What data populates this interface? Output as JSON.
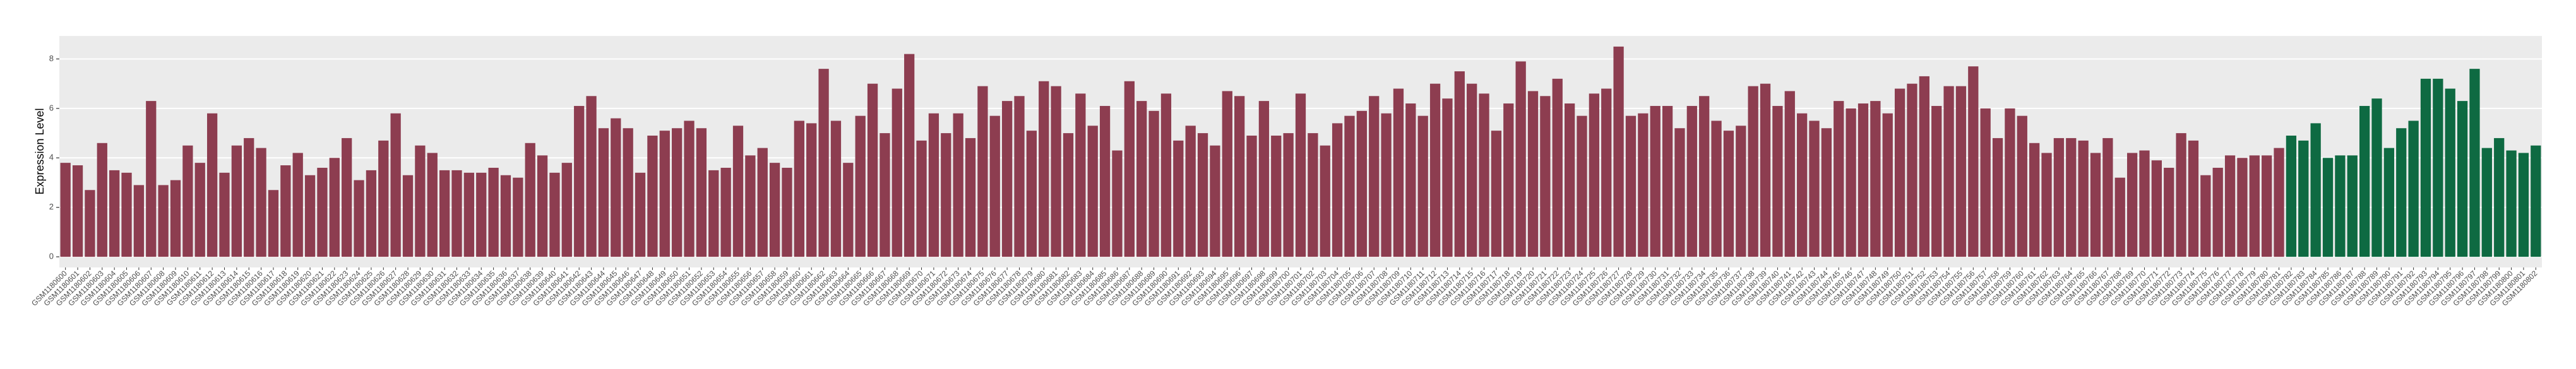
{
  "chart_data": {
    "type": "bar",
    "ylabel": "Expression Level",
    "categories": [
      "GSM1180600",
      "GSM1180601",
      "GSM1180602",
      "GSM1180603",
      "GSM1180604",
      "GSM1180605",
      "GSM1180606",
      "GSM1180607",
      "GSM1180608",
      "GSM1180609",
      "GSM1180610",
      "GSM1180611",
      "GSM1180612",
      "GSM1180613",
      "GSM1180614",
      "GSM1180615",
      "GSM1180616",
      "GSM1180617",
      "GSM1180618",
      "GSM1180619",
      "GSM1180620",
      "GSM1180621",
      "GSM1180622",
      "GSM1180623",
      "GSM1180624",
      "GSM1180625",
      "GSM1180626",
      "GSM1180627",
      "GSM1180628",
      "GSM1180629",
      "GSM1180630",
      "GSM1180631",
      "GSM1180632",
      "GSM1180633",
      "GSM1180634",
      "GSM1180635",
      "GSM1180636",
      "GSM1180637",
      "GSM1180638",
      "GSM1180639",
      "GSM1180640",
      "GSM1180641",
      "GSM1180642",
      "GSM1180643",
      "GSM1180644",
      "GSM1180645",
      "GSM1180646",
      "GSM1180647",
      "GSM1180648",
      "GSM1180649",
      "GSM1180650",
      "GSM1180651",
      "GSM1180652",
      "GSM1180653",
      "GSM1180654",
      "GSM1180655",
      "GSM1180656",
      "GSM1180657",
      "GSM1180658",
      "GSM1180659",
      "GSM1180660",
      "GSM1180661",
      "GSM1180662",
      "GSM1180663",
      "GSM1180664",
      "GSM1180665",
      "GSM1180666",
      "GSM1180667",
      "GSM1180668",
      "GSM1180669",
      "GSM1180670",
      "GSM1180671",
      "GSM1180672",
      "GSM1180673",
      "GSM1180674",
      "GSM1180675",
      "GSM1180676",
      "GSM1180677",
      "GSM1180678",
      "GSM1180679",
      "GSM1180680",
      "GSM1180681",
      "GSM1180682",
      "GSM1180683",
      "GSM1180684",
      "GSM1180685",
      "GSM1180686",
      "GSM1180687",
      "GSM1180688",
      "GSM1180689",
      "GSM1180690",
      "GSM1180691",
      "GSM1180692",
      "GSM1180693",
      "GSM1180694",
      "GSM1180695",
      "GSM1180696",
      "GSM1180697",
      "GSM1180698",
      "GSM1180699",
      "GSM1180700",
      "GSM1180701",
      "GSM1180702",
      "GSM1180703",
      "GSM1180704",
      "GSM1180705",
      "GSM1180706",
      "GSM1180707",
      "GSM1180708",
      "GSM1180709",
      "GSM1180710",
      "GSM1180711",
      "GSM1180712",
      "GSM1180713",
      "GSM1180714",
      "GSM1180715",
      "GSM1180716",
      "GSM1180717",
      "GSM1180718",
      "GSM1180719",
      "GSM1180720",
      "GSM1180721",
      "GSM1180722",
      "GSM1180723",
      "GSM1180724",
      "GSM1180725",
      "GSM1180726",
      "GSM1180727",
      "GSM1180728",
      "GSM1180729",
      "GSM1180730",
      "GSM1180731",
      "GSM1180732",
      "GSM1180733",
      "GSM1180734",
      "GSM1180735",
      "GSM1180736",
      "GSM1180737",
      "GSM1180738",
      "GSM1180739",
      "GSM1180740",
      "GSM1180741",
      "GSM1180742",
      "GSM1180743",
      "GSM1180744",
      "GSM1180745",
      "GSM1180746",
      "GSM1180747",
      "GSM1180748",
      "GSM1180749",
      "GSM1180750",
      "GSM1180751",
      "GSM1180752",
      "GSM1180753",
      "GSM1180754",
      "GSM1180755",
      "GSM1180756",
      "GSM1180757",
      "GSM1180758",
      "GSM1180759",
      "GSM1180760",
      "GSM1180761",
      "GSM1180762",
      "GSM1180763",
      "GSM1180764",
      "GSM1180765",
      "GSM1180766",
      "GSM1180767",
      "GSM1180768",
      "GSM1180769",
      "GSM1180770",
      "GSM1180771",
      "GSM1180772",
      "GSM1180773",
      "GSM1180774",
      "GSM1180775",
      "GSM1180776",
      "GSM1180777",
      "GSM1180778",
      "GSM1180779",
      "GSM1180780",
      "GSM1180781",
      "GSM1180782",
      "GSM1180783",
      "GSM1180784",
      "GSM1180785",
      "GSM1180786",
      "GSM1180787",
      "GSM1180788",
      "GSM1180789",
      "GSM1180790",
      "GSM1180791",
      "GSM1180792",
      "GSM1180793",
      "GSM1180794",
      "GSM1180795",
      "GSM1180796",
      "GSM1180797",
      "GSM1180798",
      "GSM1180799",
      "GSM1180800",
      "GSM1180801",
      "GSM1180802"
    ],
    "values": [
      3.8,
      3.7,
      2.7,
      4.6,
      3.5,
      3.4,
      2.9,
      6.3,
      2.9,
      3.1,
      4.5,
      3.8,
      5.8,
      3.4,
      4.5,
      4.8,
      4.4,
      2.7,
      3.7,
      4.2,
      3.3,
      3.6,
      4.0,
      4.8,
      3.1,
      3.5,
      4.7,
      5.8,
      3.3,
      4.5,
      4.2,
      3.5,
      3.5,
      3.4,
      3.4,
      3.6,
      3.3,
      3.2,
      4.6,
      4.1,
      3.4,
      3.8,
      6.1,
      6.5,
      5.2,
      5.6,
      5.2,
      3.4,
      4.9,
      5.1,
      5.2,
      5.5,
      5.2,
      3.5,
      3.6,
      5.3,
      4.1,
      4.4,
      3.8,
      3.6,
      5.5,
      5.4,
      7.6,
      5.5,
      3.8,
      5.7,
      7.0,
      5.0,
      6.8,
      8.2,
      4.7,
      5.8,
      5.0,
      5.8,
      4.8,
      6.9,
      5.7,
      6.3,
      6.5,
      5.1,
      7.1,
      6.9,
      5.0,
      6.6,
      5.3,
      6.1,
      4.3,
      7.1,
      6.3,
      5.9,
      6.6,
      4.7,
      5.3,
      5.0,
      4.5,
      6.7,
      6.5,
      4.9,
      6.3,
      4.9,
      5.0,
      6.6,
      5.0,
      4.5,
      5.4,
      5.7,
      5.9,
      6.5,
      5.8,
      6.8,
      6.2,
      5.7,
      7.0,
      6.4,
      7.5,
      7.0,
      6.6,
      5.1,
      6.2,
      7.9,
      6.7,
      6.5,
      7.2,
      6.2,
      5.7,
      6.6,
      6.8,
      8.5,
      5.7,
      5.8,
      6.1,
      6.1,
      5.2,
      6.1,
      6.5,
      5.5,
      5.1,
      5.3,
      6.9,
      7.0,
      6.1,
      6.7,
      5.8,
      5.5,
      5.2,
      6.3,
      6.0,
      6.2,
      6.3,
      5.8,
      6.8,
      7.0,
      7.3,
      6.1,
      6.9,
      6.9,
      7.7,
      6.0,
      4.8,
      6.0,
      5.7,
      4.6,
      4.2,
      4.8,
      4.8,
      4.7,
      4.2,
      4.8,
      3.2,
      4.2,
      4.3,
      3.9,
      3.6,
      5.0,
      4.7,
      3.3,
      3.6,
      4.1,
      4.0,
      4.1,
      4.1,
      4.4,
      4.9,
      4.7,
      5.4,
      4.0,
      4.1,
      4.1,
      6.1,
      6.4,
      4.4,
      5.2,
      5.5,
      7.2,
      7.2,
      6.8,
      6.3,
      7.6,
      4.4,
      4.8,
      4.3,
      4.2,
      4.5
    ],
    "colors": [
      "#8d3d50",
      "#8d3d50",
      "#8d3d50",
      "#8d3d50",
      "#8d3d50",
      "#8d3d50",
      "#8d3d50",
      "#8d3d50",
      "#8d3d50",
      "#8d3d50",
      "#8d3d50",
      "#8d3d50",
      "#8d3d50",
      "#8d3d50",
      "#8d3d50",
      "#8d3d50",
      "#8d3d50",
      "#8d3d50",
      "#8d3d50",
      "#8d3d50",
      "#8d3d50",
      "#8d3d50",
      "#8d3d50",
      "#8d3d50",
      "#8d3d50",
      "#8d3d50",
      "#8d3d50",
      "#8d3d50",
      "#8d3d50",
      "#8d3d50",
      "#8d3d50",
      "#8d3d50",
      "#8d3d50",
      "#8d3d50",
      "#8d3d50",
      "#8d3d50",
      "#8d3d50",
      "#8d3d50",
      "#8d3d50",
      "#8d3d50",
      "#8d3d50",
      "#8d3d50",
      "#8d3d50",
      "#8d3d50",
      "#8d3d50",
      "#8d3d50",
      "#8d3d50",
      "#8d3d50",
      "#8d3d50",
      "#8d3d50",
      "#8d3d50",
      "#8d3d50",
      "#8d3d50",
      "#8d3d50",
      "#8d3d50",
      "#8d3d50",
      "#8d3d50",
      "#8d3d50",
      "#8d3d50",
      "#8d3d50",
      "#8d3d50",
      "#8d3d50",
      "#8d3d50",
      "#8d3d50",
      "#8d3d50",
      "#8d3d50",
      "#8d3d50",
      "#8d3d50",
      "#8d3d50",
      "#8d3d50",
      "#8d3d50",
      "#8d3d50",
      "#8d3d50",
      "#8d3d50",
      "#8d3d50",
      "#8d3d50",
      "#8d3d50",
      "#8d3d50",
      "#8d3d50",
      "#8d3d50",
      "#8d3d50",
      "#8d3d50",
      "#8d3d50",
      "#8d3d50",
      "#8d3d50",
      "#8d3d50",
      "#8d3d50",
      "#8d3d50",
      "#8d3d50",
      "#8d3d50",
      "#8d3d50",
      "#8d3d50",
      "#8d3d50",
      "#8d3d50",
      "#8d3d50",
      "#8d3d50",
      "#8d3d50",
      "#8d3d50",
      "#8d3d50",
      "#8d3d50",
      "#8d3d50",
      "#8d3d50",
      "#8d3d50",
      "#8d3d50",
      "#8d3d50",
      "#8d3d50",
      "#8d3d50",
      "#8d3d50",
      "#8d3d50",
      "#8d3d50",
      "#8d3d50",
      "#8d3d50",
      "#8d3d50",
      "#8d3d50",
      "#8d3d50",
      "#8d3d50",
      "#8d3d50",
      "#8d3d50",
      "#8d3d50",
      "#8d3d50",
      "#8d3d50",
      "#8d3d50",
      "#8d3d50",
      "#8d3d50",
      "#8d3d50",
      "#8d3d50",
      "#8d3d50",
      "#8d3d50",
      "#8d3d50",
      "#8d3d50",
      "#8d3d50",
      "#8d3d50",
      "#8d3d50",
      "#8d3d50",
      "#8d3d50",
      "#8d3d50",
      "#8d3d50",
      "#8d3d50",
      "#8d3d50",
      "#8d3d50",
      "#8d3d50",
      "#8d3d50",
      "#8d3d50",
      "#8d3d50",
      "#8d3d50",
      "#8d3d50",
      "#8d3d50",
      "#8d3d50",
      "#8d3d50",
      "#8d3d50",
      "#8d3d50",
      "#8d3d50",
      "#8d3d50",
      "#8d3d50",
      "#8d3d50",
      "#8d3d50",
      "#8d3d50",
      "#8d3d50",
      "#8d3d50",
      "#8d3d50",
      "#8d3d50",
      "#8d3d50",
      "#8d3d50",
      "#8d3d50",
      "#8d3d50",
      "#8d3d50",
      "#8d3d50",
      "#8d3d50",
      "#8d3d50",
      "#8d3d50",
      "#8d3d50",
      "#8d3d50",
      "#8d3d50",
      "#8d3d50",
      "#8d3d50",
      "#8d3d50",
      "#8d3d50",
      "#8d3d50",
      "#8d3d50",
      "#8d3d50",
      "#8d3d50",
      "#8d3d50",
      "#0e6a42",
      "#0e6a42",
      "#0e6a42",
      "#0e6a42",
      "#0e6a42",
      "#0e6a42",
      "#0e6a42",
      "#0e6a42",
      "#0e6a42",
      "#0e6a42",
      "#0e6a42",
      "#0e6a42",
      "#0e6a42",
      "#0e6a42",
      "#0e6a42",
      "#0e6a42",
      "#0e6a42",
      "#0e6a42",
      "#0e6a42",
      "#0e6a42",
      "#0e6a42"
    ],
    "ylim": [
      -0.43,
      8.93
    ],
    "yticks": [
      0,
      2,
      4,
      6,
      8
    ],
    "grid": true
  }
}
